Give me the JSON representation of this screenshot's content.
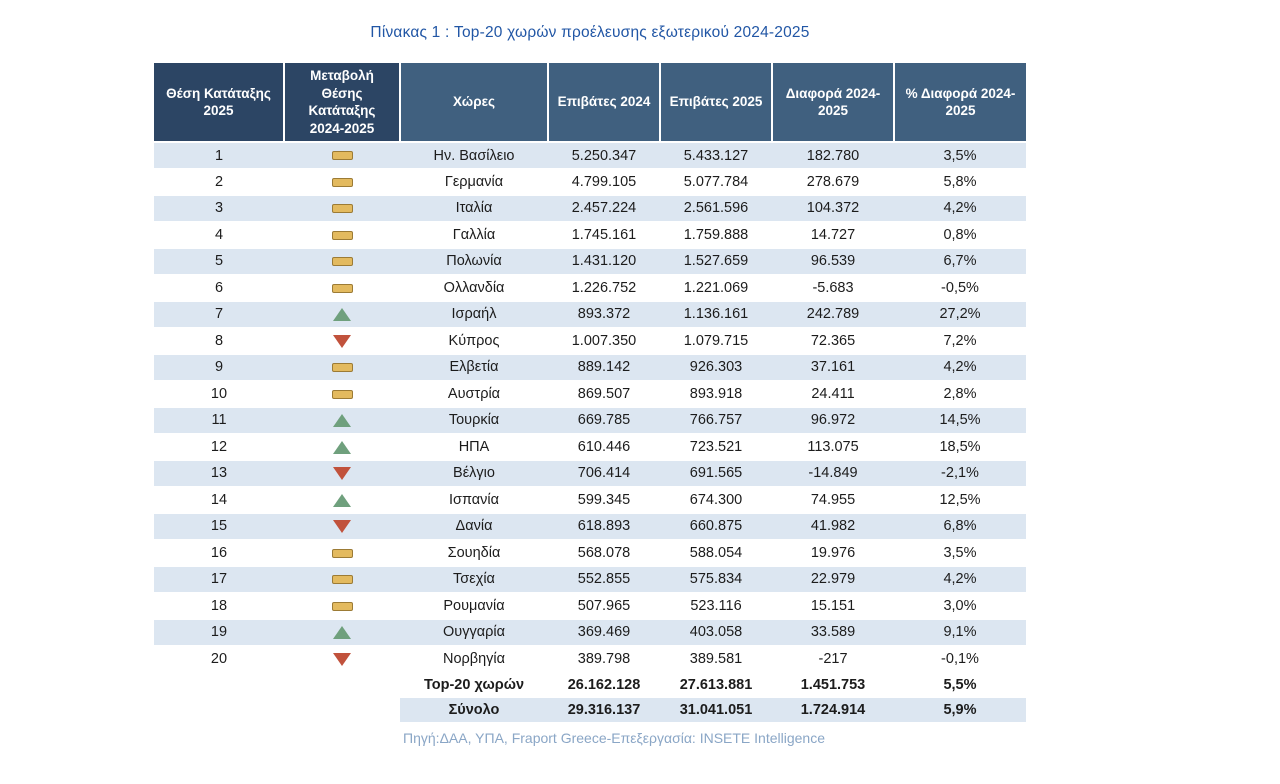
{
  "chart_data": {
    "type": "table",
    "title": "Πίνακας 1 : Top-20 χωρών προέλευσης εξωτερικού 2024-2025",
    "source": "Πηγή:ΔΑΑ, ΥΠΑ, Fraport Greece-Επεξεργασία: INSETE Intelligence",
    "columns": {
      "rank": "Θέση Κατάταξης 2025",
      "trend": "Μεταβολή Θέσης Κατάταξης 2024-2025",
      "country": "Χώρες",
      "p2024": "Επιβάτες 2024",
      "p2025": "Επιβάτες 2025",
      "diff": "Διαφορά 2024-2025",
      "pct": "% Διαφορά 2024-2025"
    },
    "trend_legend": {
      "same": "dash-icon",
      "up": "triangle-up-icon",
      "down": "triangle-down-icon"
    },
    "rows": [
      {
        "rank": "1",
        "trend": "same",
        "country": "Ην. Βασίλειο",
        "p2024": "5.250.347",
        "p2025": "5.433.127",
        "diff": "182.780",
        "pct": "3,5%"
      },
      {
        "rank": "2",
        "trend": "same",
        "country": "Γερμανία",
        "p2024": "4.799.105",
        "p2025": "5.077.784",
        "diff": "278.679",
        "pct": "5,8%"
      },
      {
        "rank": "3",
        "trend": "same",
        "country": "Ιταλία",
        "p2024": "2.457.224",
        "p2025": "2.561.596",
        "diff": "104.372",
        "pct": "4,2%"
      },
      {
        "rank": "4",
        "trend": "same",
        "country": "Γαλλία",
        "p2024": "1.745.161",
        "p2025": "1.759.888",
        "diff": "14.727",
        "pct": "0,8%"
      },
      {
        "rank": "5",
        "trend": "same",
        "country": "Πολωνία",
        "p2024": "1.431.120",
        "p2025": "1.527.659",
        "diff": "96.539",
        "pct": "6,7%"
      },
      {
        "rank": "6",
        "trend": "same",
        "country": "Ολλανδία",
        "p2024": "1.226.752",
        "p2025": "1.221.069",
        "diff": "-5.683",
        "pct": "-0,5%"
      },
      {
        "rank": "7",
        "trend": "up",
        "country": "Ισραήλ",
        "p2024": "893.372",
        "p2025": "1.136.161",
        "diff": "242.789",
        "pct": "27,2%"
      },
      {
        "rank": "8",
        "trend": "down",
        "country": "Κύπρος",
        "p2024": "1.007.350",
        "p2025": "1.079.715",
        "diff": "72.365",
        "pct": "7,2%"
      },
      {
        "rank": "9",
        "trend": "same",
        "country": "Ελβετία",
        "p2024": "889.142",
        "p2025": "926.303",
        "diff": "37.161",
        "pct": "4,2%"
      },
      {
        "rank": "10",
        "trend": "same",
        "country": "Αυστρία",
        "p2024": "869.507",
        "p2025": "893.918",
        "diff": "24.411",
        "pct": "2,8%"
      },
      {
        "rank": "11",
        "trend": "up",
        "country": "Τουρκία",
        "p2024": "669.785",
        "p2025": "766.757",
        "diff": "96.972",
        "pct": "14,5%"
      },
      {
        "rank": "12",
        "trend": "up",
        "country": "ΗΠΑ",
        "p2024": "610.446",
        "p2025": "723.521",
        "diff": "113.075",
        "pct": "18,5%"
      },
      {
        "rank": "13",
        "trend": "down",
        "country": "Βέλγιο",
        "p2024": "706.414",
        "p2025": "691.565",
        "diff": "-14.849",
        "pct": "-2,1%"
      },
      {
        "rank": "14",
        "trend": "up",
        "country": "Ισπανία",
        "p2024": "599.345",
        "p2025": "674.300",
        "diff": "74.955",
        "pct": "12,5%"
      },
      {
        "rank": "15",
        "trend": "down",
        "country": "Δανία",
        "p2024": "618.893",
        "p2025": "660.875",
        "diff": "41.982",
        "pct": "6,8%"
      },
      {
        "rank": "16",
        "trend": "same",
        "country": "Σουηδία",
        "p2024": "568.078",
        "p2025": "588.054",
        "diff": "19.976",
        "pct": "3,5%"
      },
      {
        "rank": "17",
        "trend": "same",
        "country": "Τσεχία",
        "p2024": "552.855",
        "p2025": "575.834",
        "diff": "22.979",
        "pct": "4,2%"
      },
      {
        "rank": "18",
        "trend": "same",
        "country": "Ρουμανία",
        "p2024": "507.965",
        "p2025": "523.116",
        "diff": "15.151",
        "pct": "3,0%"
      },
      {
        "rank": "19",
        "trend": "up",
        "country": "Ουγγαρία",
        "p2024": "369.469",
        "p2025": "403.058",
        "diff": "33.589",
        "pct": "9,1%"
      },
      {
        "rank": "20",
        "trend": "down",
        "country": "Νορβηγία",
        "p2024": "389.798",
        "p2025": "389.581",
        "diff": "-217",
        "pct": "-0,1%"
      }
    ],
    "totals": [
      {
        "label": "Top-20 χωρών",
        "p2024": "26.162.128",
        "p2025": "27.613.881",
        "diff": "1.451.753",
        "pct": "5,5%"
      },
      {
        "label": "Σύνολο",
        "p2024": "29.316.137",
        "p2025": "31.041.051",
        "diff": "1.724.914",
        "pct": "5,9%"
      }
    ]
  },
  "colors": {
    "header_dark": "#2c4564",
    "header_light": "#40607f",
    "row_alt": "#dce6f1",
    "title_blue": "#2156a5",
    "source_blue": "#8aa6c6",
    "trend_same": "#e3ba5f",
    "trend_up": "#6fa07d",
    "trend_down": "#c1523c"
  }
}
